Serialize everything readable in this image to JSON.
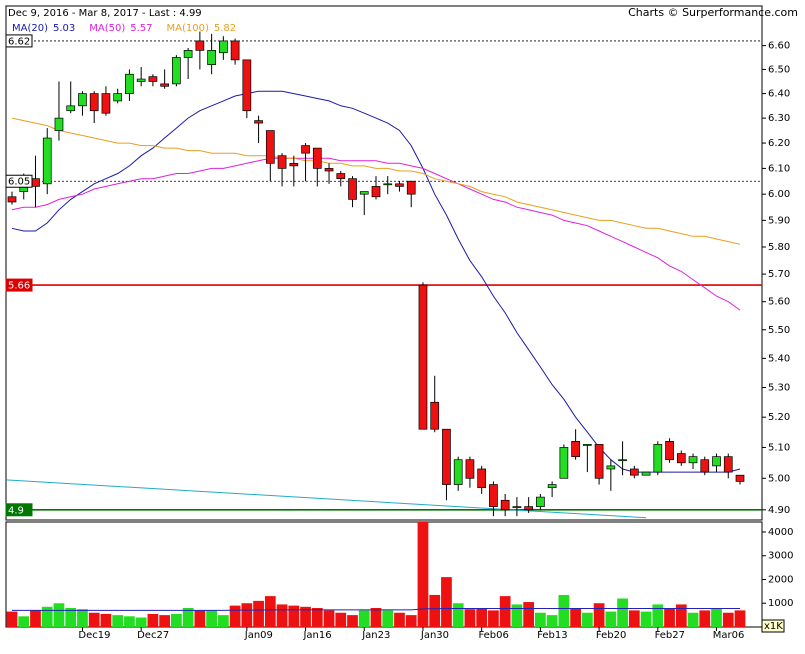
{
  "chart_data": {
    "type": "candlestick",
    "title": "Dec 9, 2016 - Mar 8, 2017 - Last : 4.99",
    "source": "Charts © Surperformance.com",
    "categories": [
      null,
      null,
      null,
      null,
      null,
      null,
      "Dec19",
      null,
      null,
      null,
      null,
      "Dec27",
      null,
      null,
      null,
      null,
      null,
      null,
      null,
      null,
      "Jan09",
      null,
      null,
      null,
      null,
      "Jan16",
      null,
      null,
      null,
      null,
      "Jan23",
      null,
      null,
      null,
      null,
      "Jan30",
      null,
      null,
      null,
      null,
      "Feb06",
      null,
      null,
      null,
      null,
      "Feb13",
      null,
      null,
      null,
      null,
      "Feb20",
      null,
      null,
      null,
      null,
      "Feb27",
      null,
      null,
      null,
      null,
      "Mar06",
      null,
      null
    ],
    "open": [
      5.99,
      6.01,
      6.06,
      6.04,
      6.25,
      6.33,
      6.35,
      6.4,
      6.4,
      6.37,
      6.4,
      6.45,
      6.47,
      6.44,
      6.44,
      6.55,
      6.62,
      6.52,
      6.57,
      6.62,
      6.54,
      6.29,
      6.25,
      6.15,
      6.12,
      6.19,
      6.18,
      6.1,
      6.08,
      6.06,
      6.0,
      6.03,
      6.04,
      6.04,
      6.05,
      5.66,
      5.25,
      5.16,
      4.98,
      5.06,
      5.03,
      4.98,
      4.93,
      4.91,
      4.91,
      4.91,
      4.97,
      5.0,
      5.12,
      5.11,
      5.11,
      5.03,
      5.06,
      5.03,
      5.01,
      5.02,
      5.12,
      5.08,
      5.05,
      5.06,
      5.04,
      5.07,
      5.01
    ],
    "high": [
      6.01,
      6.08,
      6.15,
      6.26,
      6.45,
      6.45,
      6.41,
      6.41,
      6.43,
      6.42,
      6.5,
      6.51,
      6.48,
      6.5,
      6.56,
      6.59,
      6.66,
      6.65,
      6.64,
      6.63,
      6.54,
      6.31,
      6.25,
      6.16,
      6.15,
      6.2,
      6.18,
      6.12,
      6.09,
      6.07,
      6.01,
      6.07,
      6.07,
      6.05,
      6.05,
      5.67,
      5.34,
      5.16,
      5.07,
      5.07,
      5.04,
      4.99,
      4.95,
      4.94,
      4.94,
      4.95,
      4.99,
      5.11,
      5.16,
      5.11,
      5.11,
      5.06,
      5.12,
      5.04,
      5.02,
      5.12,
      5.13,
      5.09,
      5.08,
      5.07,
      5.08,
      5.08,
      5.01
    ],
    "low": [
      5.96,
      5.98,
      5.95,
      6.0,
      6.21,
      6.32,
      6.31,
      6.28,
      6.31,
      6.36,
      6.37,
      6.43,
      6.43,
      6.42,
      6.43,
      6.46,
      6.5,
      6.48,
      6.54,
      6.52,
      6.3,
      6.2,
      6.05,
      6.03,
      6.03,
      6.05,
      6.03,
      6.04,
      6.03,
      5.95,
      5.92,
      5.98,
      6.0,
      6.01,
      5.95,
      5.16,
      5.15,
      4.93,
      4.96,
      4.97,
      4.95,
      4.88,
      4.88,
      4.88,
      4.89,
      4.9,
      4.94,
      5.0,
      5.06,
      5.02,
      4.98,
      4.96,
      5.01,
      5.0,
      5.01,
      5.01,
      5.05,
      5.04,
      5.03,
      5.01,
      5.02,
      5.0,
      4.98
    ],
    "close": [
      5.97,
      6.06,
      6.03,
      6.22,
      6.3,
      6.35,
      6.4,
      6.33,
      6.32,
      6.4,
      6.48,
      6.46,
      6.45,
      6.43,
      6.55,
      6.58,
      6.58,
      6.58,
      6.62,
      6.54,
      6.33,
      6.28,
      6.12,
      6.1,
      6.11,
      6.16,
      6.1,
      6.09,
      6.06,
      5.98,
      6.01,
      5.99,
      6.04,
      6.03,
      6.0,
      5.16,
      5.16,
      4.98,
      5.06,
      5.0,
      4.97,
      4.91,
      4.9,
      4.91,
      4.9,
      4.94,
      4.98,
      5.1,
      5.07,
      5.11,
      5.0,
      5.04,
      5.06,
      5.01,
      5.02,
      5.11,
      5.06,
      5.05,
      5.07,
      5.02,
      5.07,
      5.02,
      4.99
    ],
    "up_color": "#22dd22",
    "down_color": "#ee1111",
    "log": true,
    "ylim": [
      4.868,
      6.77
    ],
    "yticks": [
      {
        "value": 6.6,
        "label": "6.60"
      },
      {
        "value": 6.5,
        "label": "6.50"
      },
      {
        "value": 6.4,
        "label": "6.40"
      },
      {
        "value": 6.3,
        "label": "6.30"
      },
      {
        "value": 6.2,
        "label": "6.20"
      },
      {
        "value": 6.1,
        "label": "6.10"
      },
      {
        "value": 6.0,
        "label": "6.00"
      },
      {
        "value": 5.9,
        "label": "5.90"
      },
      {
        "value": 5.8,
        "label": "5.80"
      },
      {
        "value": 5.7,
        "label": "5.70"
      },
      {
        "value": 5.6,
        "label": "5.60"
      },
      {
        "value": 5.5,
        "label": "5.50"
      },
      {
        "value": 5.4,
        "label": "5.40"
      },
      {
        "value": 5.3,
        "label": "5.30"
      },
      {
        "value": 5.2,
        "label": "5.20"
      },
      {
        "value": 5.1,
        "label": "5.10"
      },
      {
        "value": 5.0,
        "label": "5.00"
      },
      {
        "value": 4.9,
        "label": "4.90"
      }
    ],
    "moving_averages": [
      {
        "name": "MA(20)",
        "last": 5.03,
        "color": "#1a1aaa",
        "values": [
          5.87,
          5.86,
          5.86,
          5.89,
          5.94,
          5.98,
          6.01,
          6.04,
          6.06,
          6.08,
          6.11,
          6.15,
          6.18,
          6.22,
          6.26,
          6.3,
          6.33,
          6.35,
          6.37,
          6.39,
          6.4,
          6.41,
          6.41,
          6.41,
          6.4,
          6.39,
          6.38,
          6.37,
          6.35,
          6.34,
          6.32,
          6.3,
          6.28,
          6.25,
          6.19,
          6.1,
          6.0,
          5.92,
          5.83,
          5.75,
          5.69,
          5.62,
          5.56,
          5.49,
          5.43,
          5.37,
          5.31,
          5.26,
          5.2,
          5.15,
          5.1,
          5.06,
          5.03,
          5.02,
          5.02,
          5.02,
          5.02,
          5.02,
          5.02,
          5.02,
          5.02,
          5.02,
          5.03
        ]
      },
      {
        "name": "MA(50)",
        "last": 5.57,
        "color": "#dd22dd",
        "values": [
          5.94,
          5.95,
          5.95,
          5.96,
          5.98,
          5.99,
          6.0,
          6.02,
          6.03,
          6.04,
          6.05,
          6.06,
          6.06,
          6.07,
          6.08,
          6.08,
          6.09,
          6.1,
          6.1,
          6.11,
          6.12,
          6.13,
          6.14,
          6.14,
          6.14,
          6.14,
          6.14,
          6.14,
          6.13,
          6.13,
          6.13,
          6.13,
          6.12,
          6.12,
          6.11,
          6.1,
          6.08,
          6.06,
          6.04,
          6.02,
          6.0,
          5.98,
          5.97,
          5.95,
          5.94,
          5.93,
          5.92,
          5.9,
          5.89,
          5.88,
          5.86,
          5.84,
          5.82,
          5.8,
          5.78,
          5.76,
          5.73,
          5.71,
          5.68,
          5.65,
          5.62,
          5.6,
          5.57
        ]
      },
      {
        "name": "MA(100)",
        "last": 5.82,
        "color": "#e8a020",
        "values": [
          6.3,
          6.29,
          6.28,
          6.27,
          6.25,
          6.24,
          6.23,
          6.22,
          6.21,
          6.2,
          6.2,
          6.19,
          6.19,
          6.18,
          6.18,
          6.17,
          6.17,
          6.16,
          6.16,
          6.16,
          6.15,
          6.15,
          6.15,
          6.14,
          6.14,
          6.13,
          6.13,
          6.12,
          6.12,
          6.11,
          6.11,
          6.1,
          6.1,
          6.09,
          6.09,
          6.08,
          6.06,
          6.05,
          6.04,
          6.03,
          6.01,
          6.0,
          5.99,
          5.97,
          5.96,
          5.95,
          5.94,
          5.93,
          5.92,
          5.91,
          5.9,
          5.9,
          5.89,
          5.88,
          5.87,
          5.87,
          5.86,
          5.85,
          5.84,
          5.84,
          5.83,
          5.82,
          5.81
        ]
      }
    ],
    "levels": [
      {
        "value": 6.62,
        "color": "#000000",
        "dashed": true,
        "label_color": "#000000",
        "box_color": "#ffffff"
      },
      {
        "value": 6.05,
        "color": "#000000",
        "dashed": true,
        "label_color": "#000000",
        "box_color": "#ffffff"
      },
      {
        "value": 5.66,
        "color": "#dd0000",
        "dashed": false,
        "label_color": "#ffffff",
        "box_color": "#dd0000"
      },
      {
        "value": 4.9,
        "color": "#007700",
        "dashed": false,
        "label_color": "#ffffff",
        "box_color": "#007700"
      }
    ],
    "trendline": {
      "color": "#22aacc",
      "points": [
        [
          -0.5,
          4.995
        ],
        [
          54,
          4.875
        ]
      ]
    },
    "volume": {
      "values": [
        650,
        450,
        700,
        850,
        1000,
        800,
        750,
        600,
        550,
        500,
        450,
        400,
        550,
        500,
        550,
        800,
        700,
        700,
        500,
        900,
        1000,
        1100,
        1300,
        950,
        900,
        850,
        800,
        700,
        600,
        500,
        700,
        800,
        700,
        600,
        500,
        4500,
        1350,
        2100,
        1000,
        750,
        800,
        700,
        1300,
        950,
        1050,
        600,
        500,
        1350,
        800,
        600,
        1000,
        650,
        1200,
        700,
        650,
        950,
        800,
        950,
        600,
        700,
        800,
        600,
        700
      ],
      "ylim": [
        0,
        4420
      ],
      "yticks": [
        1000,
        2000,
        3000,
        4000
      ],
      "unit_label": "x1K",
      "ma": {
        "color": "#2222bb",
        "values": [
          700,
          700,
          700,
          700,
          700,
          700,
          700,
          700,
          700,
          700,
          700,
          700,
          700,
          700,
          700,
          700,
          700,
          700,
          700,
          710,
          710,
          710,
          720,
          720,
          720,
          720,
          720,
          720,
          720,
          720,
          720,
          720,
          720,
          720,
          720,
          760,
          770,
          780,
          780,
          780,
          780,
          780,
          780,
          780,
          780,
          780,
          780,
          780,
          780,
          780,
          780,
          780,
          780,
          780,
          780,
          780,
          780,
          780,
          780,
          780,
          780,
          780,
          780
        ]
      }
    }
  }
}
